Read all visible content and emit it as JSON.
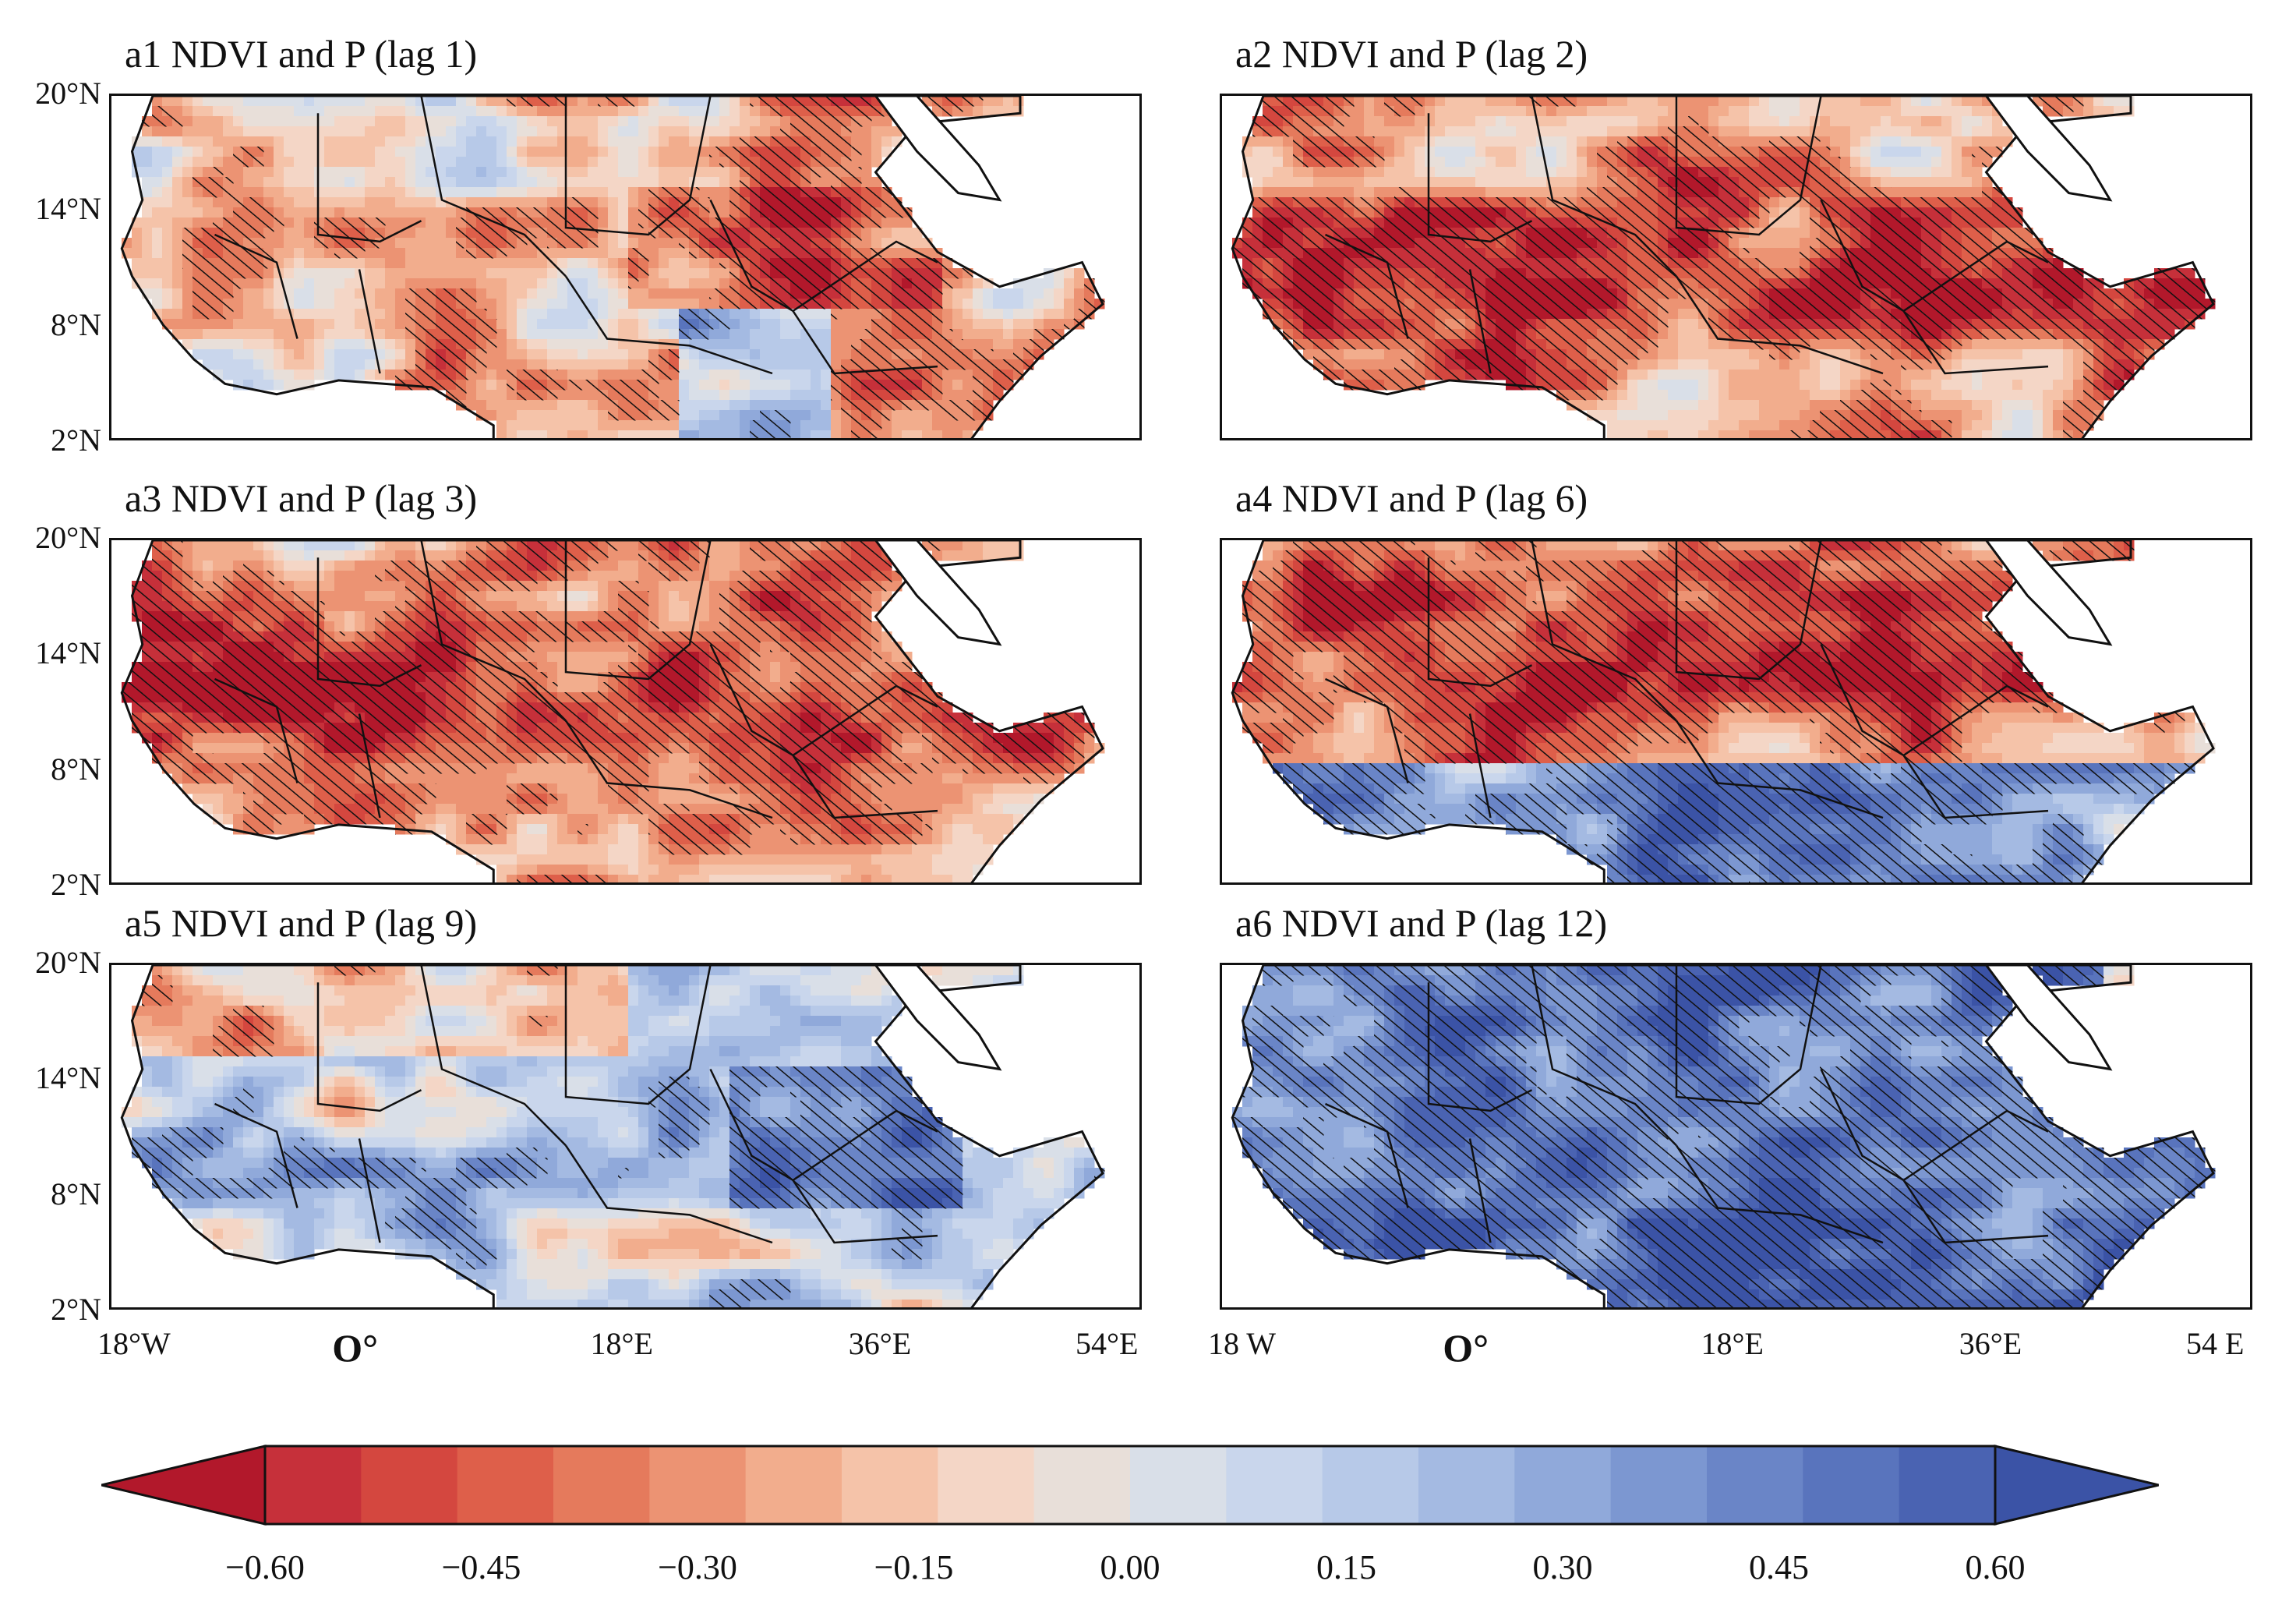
{
  "panels": [
    {
      "id": "a1",
      "label": "a1",
      "title": "NDVI and P (lag 1)",
      "pattern": "mixed_red"
    },
    {
      "id": "a2",
      "label": "a2",
      "title": "NDVI and P (lag 2)",
      "pattern": "red_band"
    },
    {
      "id": "a3",
      "label": "a3",
      "title": "NDVI and P (lag 3)",
      "pattern": "red_band"
    },
    {
      "id": "a4",
      "label": "a4",
      "title": "NDVI and P (lag 6)",
      "pattern": "red_north_blue_south"
    },
    {
      "id": "a5",
      "label": "a5",
      "title": "NDVI and P (lag 9)",
      "pattern": "mixed_blue"
    },
    {
      "id": "a6",
      "label": "a6",
      "title": "NDVI and P (lag 12)",
      "pattern": "strong_blue"
    }
  ],
  "lat_ticks": [
    "20°N",
    "14°N",
    "8°N",
    "2°N"
  ],
  "lon_ticks_left": [
    "18°W",
    "O°",
    "18°E",
    "36°E",
    "54°E"
  ],
  "lon_ticks_right": [
    "18 W",
    "O°",
    "18°E",
    "36°E",
    "54 E"
  ],
  "colorbar": {
    "min": -0.6,
    "max": 0.6,
    "tick_labels": [
      "−0.60",
      "−0.45",
      "−0.30",
      "−0.15",
      "0.00",
      "0.15",
      "0.30",
      "0.45",
      "0.60"
    ],
    "colors": [
      "#b2182b",
      "#c6303a",
      "#d4473f",
      "#de5f4a",
      "#e57a5c",
      "#ec9373",
      "#f2ad8d",
      "#f5c3a9",
      "#f4d6c6",
      "#e8dfd9",
      "#d9dfe8",
      "#c9d6ec",
      "#b7c9e8",
      "#a4bae2",
      "#90a9da",
      "#7c97d1",
      "#6a85c7",
      "#5974bd",
      "#4a63b2",
      "#3b53a6"
    ]
  }
}
